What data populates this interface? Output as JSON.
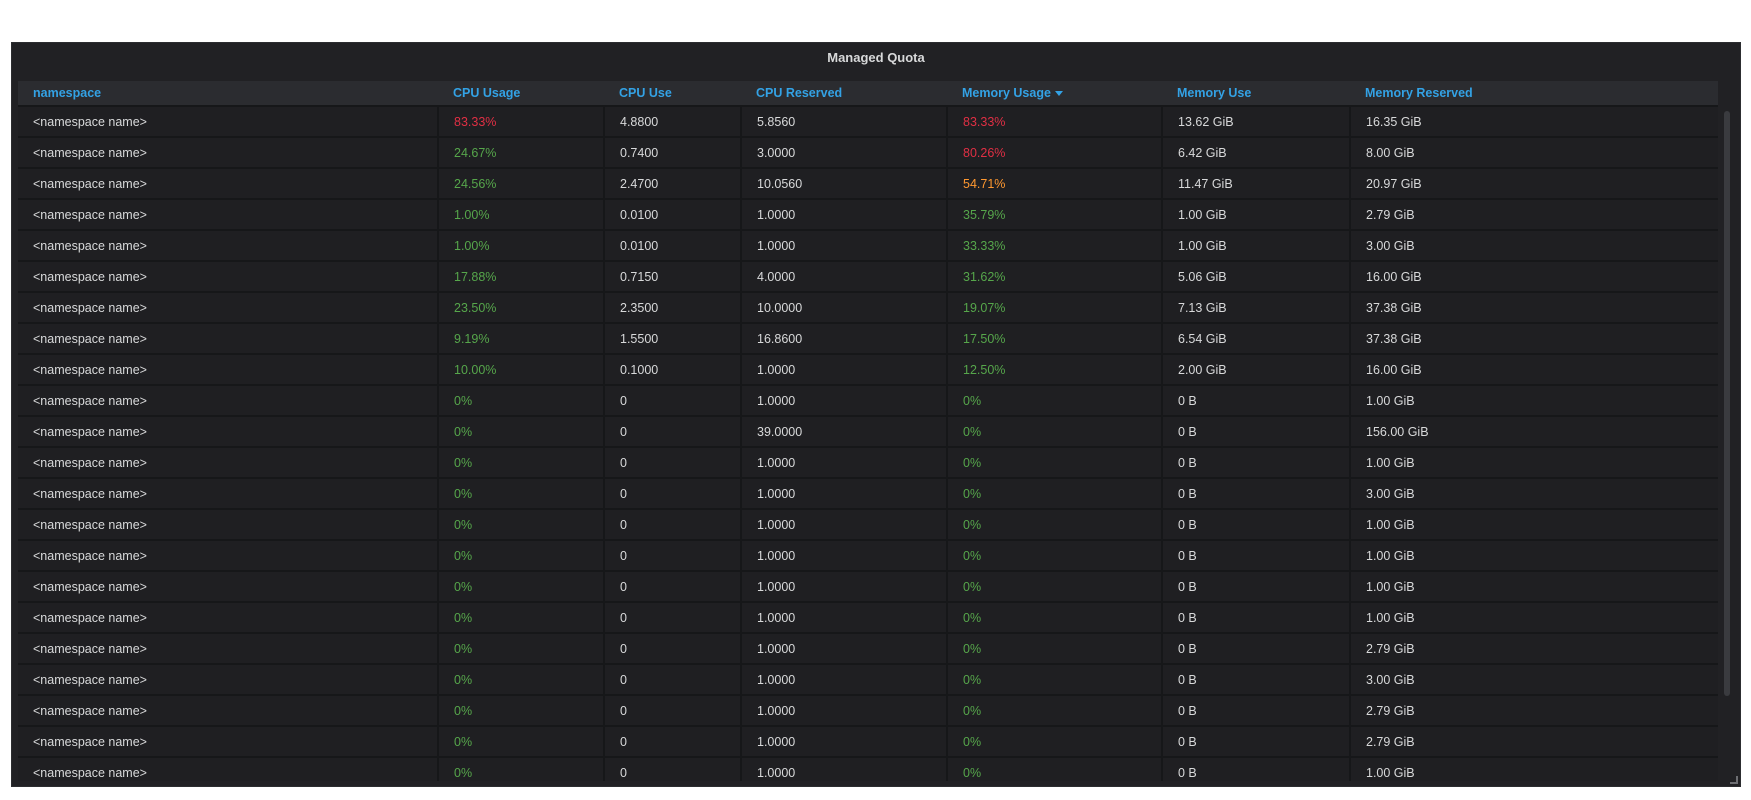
{
  "panel": {
    "title": "Managed Quota",
    "colors": {
      "red": "#e02f44",
      "orange": "#ff9830",
      "green": "#56a64b",
      "header": "#33a2e5"
    }
  },
  "columns": [
    {
      "key": "namespace",
      "label": "namespace"
    },
    {
      "key": "cpu_usage",
      "label": "CPU Usage"
    },
    {
      "key": "cpu_use",
      "label": "CPU Use"
    },
    {
      "key": "cpu_reserved",
      "label": "CPU Reserved"
    },
    {
      "key": "mem_usage",
      "label": "Memory Usage",
      "sorted": "desc"
    },
    {
      "key": "mem_use",
      "label": "Memory Use"
    },
    {
      "key": "mem_reserved",
      "label": "Memory Reserved"
    }
  ],
  "rows": [
    {
      "namespace": "<namespace name>",
      "cpu_usage": "83.33%",
      "cpu_usage_color": "red",
      "cpu_use": "4.8800",
      "cpu_reserved": "5.8560",
      "mem_usage": "83.33%",
      "mem_usage_color": "red",
      "mem_use": "13.62 GiB",
      "mem_reserved": "16.35 GiB"
    },
    {
      "namespace": "<namespace name>",
      "cpu_usage": "24.67%",
      "cpu_usage_color": "green",
      "cpu_use": "0.7400",
      "cpu_reserved": "3.0000",
      "mem_usage": "80.26%",
      "mem_usage_color": "red",
      "mem_use": "6.42 GiB",
      "mem_reserved": "8.00 GiB"
    },
    {
      "namespace": "<namespace name>",
      "cpu_usage": "24.56%",
      "cpu_usage_color": "green",
      "cpu_use": "2.4700",
      "cpu_reserved": "10.0560",
      "mem_usage": "54.71%",
      "mem_usage_color": "orange",
      "mem_use": "11.47 GiB",
      "mem_reserved": "20.97 GiB"
    },
    {
      "namespace": "<namespace name>",
      "cpu_usage": "1.00%",
      "cpu_usage_color": "green",
      "cpu_use": "0.0100",
      "cpu_reserved": "1.0000",
      "mem_usage": "35.79%",
      "mem_usage_color": "green",
      "mem_use": "1.00 GiB",
      "mem_reserved": "2.79 GiB"
    },
    {
      "namespace": "<namespace name>",
      "cpu_usage": "1.00%",
      "cpu_usage_color": "green",
      "cpu_use": "0.0100",
      "cpu_reserved": "1.0000",
      "mem_usage": "33.33%",
      "mem_usage_color": "green",
      "mem_use": "1.00 GiB",
      "mem_reserved": "3.00 GiB"
    },
    {
      "namespace": "<namespace name>",
      "cpu_usage": "17.88%",
      "cpu_usage_color": "green",
      "cpu_use": "0.7150",
      "cpu_reserved": "4.0000",
      "mem_usage": "31.62%",
      "mem_usage_color": "green",
      "mem_use": "5.06 GiB",
      "mem_reserved": "16.00 GiB"
    },
    {
      "namespace": "<namespace name>",
      "cpu_usage": "23.50%",
      "cpu_usage_color": "green",
      "cpu_use": "2.3500",
      "cpu_reserved": "10.0000",
      "mem_usage": "19.07%",
      "mem_usage_color": "green",
      "mem_use": "7.13 GiB",
      "mem_reserved": "37.38 GiB"
    },
    {
      "namespace": "<namespace name>",
      "cpu_usage": "9.19%",
      "cpu_usage_color": "green",
      "cpu_use": "1.5500",
      "cpu_reserved": "16.8600",
      "mem_usage": "17.50%",
      "mem_usage_color": "green",
      "mem_use": "6.54 GiB",
      "mem_reserved": "37.38 GiB"
    },
    {
      "namespace": "<namespace name>",
      "cpu_usage": "10.00%",
      "cpu_usage_color": "green",
      "cpu_use": "0.1000",
      "cpu_reserved": "1.0000",
      "mem_usage": "12.50%",
      "mem_usage_color": "green",
      "mem_use": "2.00 GiB",
      "mem_reserved": "16.00 GiB"
    },
    {
      "namespace": "<namespace name>",
      "cpu_usage": "0%",
      "cpu_usage_color": "green",
      "cpu_use": "0",
      "cpu_reserved": "1.0000",
      "mem_usage": "0%",
      "mem_usage_color": "green",
      "mem_use": "0 B",
      "mem_reserved": "1.00 GiB"
    },
    {
      "namespace": "<namespace name>",
      "cpu_usage": "0%",
      "cpu_usage_color": "green",
      "cpu_use": "0",
      "cpu_reserved": "39.0000",
      "mem_usage": "0%",
      "mem_usage_color": "green",
      "mem_use": "0 B",
      "mem_reserved": "156.00 GiB"
    },
    {
      "namespace": "<namespace name>",
      "cpu_usage": "0%",
      "cpu_usage_color": "green",
      "cpu_use": "0",
      "cpu_reserved": "1.0000",
      "mem_usage": "0%",
      "mem_usage_color": "green",
      "mem_use": "0 B",
      "mem_reserved": "1.00 GiB"
    },
    {
      "namespace": "<namespace name>",
      "cpu_usage": "0%",
      "cpu_usage_color": "green",
      "cpu_use": "0",
      "cpu_reserved": "1.0000",
      "mem_usage": "0%",
      "mem_usage_color": "green",
      "mem_use": "0 B",
      "mem_reserved": "3.00 GiB"
    },
    {
      "namespace": "<namespace name>",
      "cpu_usage": "0%",
      "cpu_usage_color": "green",
      "cpu_use": "0",
      "cpu_reserved": "1.0000",
      "mem_usage": "0%",
      "mem_usage_color": "green",
      "mem_use": "0 B",
      "mem_reserved": "1.00 GiB"
    },
    {
      "namespace": "<namespace name>",
      "cpu_usage": "0%",
      "cpu_usage_color": "green",
      "cpu_use": "0",
      "cpu_reserved": "1.0000",
      "mem_usage": "0%",
      "mem_usage_color": "green",
      "mem_use": "0 B",
      "mem_reserved": "1.00 GiB"
    },
    {
      "namespace": "<namespace name>",
      "cpu_usage": "0%",
      "cpu_usage_color": "green",
      "cpu_use": "0",
      "cpu_reserved": "1.0000",
      "mem_usage": "0%",
      "mem_usage_color": "green",
      "mem_use": "0 B",
      "mem_reserved": "1.00 GiB"
    },
    {
      "namespace": "<namespace name>",
      "cpu_usage": "0%",
      "cpu_usage_color": "green",
      "cpu_use": "0",
      "cpu_reserved": "1.0000",
      "mem_usage": "0%",
      "mem_usage_color": "green",
      "mem_use": "0 B",
      "mem_reserved": "1.00 GiB"
    },
    {
      "namespace": "<namespace name>",
      "cpu_usage": "0%",
      "cpu_usage_color": "green",
      "cpu_use": "0",
      "cpu_reserved": "1.0000",
      "mem_usage": "0%",
      "mem_usage_color": "green",
      "mem_use": "0 B",
      "mem_reserved": "2.79 GiB"
    },
    {
      "namespace": "<namespace name>",
      "cpu_usage": "0%",
      "cpu_usage_color": "green",
      "cpu_use": "0",
      "cpu_reserved": "1.0000",
      "mem_usage": "0%",
      "mem_usage_color": "green",
      "mem_use": "0 B",
      "mem_reserved": "3.00 GiB"
    },
    {
      "namespace": "<namespace name>",
      "cpu_usage": "0%",
      "cpu_usage_color": "green",
      "cpu_use": "0",
      "cpu_reserved": "1.0000",
      "mem_usage": "0%",
      "mem_usage_color": "green",
      "mem_use": "0 B",
      "mem_reserved": "2.79 GiB"
    },
    {
      "namespace": "<namespace name>",
      "cpu_usage": "0%",
      "cpu_usage_color": "green",
      "cpu_use": "0",
      "cpu_reserved": "1.0000",
      "mem_usage": "0%",
      "mem_usage_color": "green",
      "mem_use": "0 B",
      "mem_reserved": "2.79 GiB"
    },
    {
      "namespace": "<namespace name>",
      "cpu_usage": "0%",
      "cpu_usage_color": "green",
      "cpu_use": "0",
      "cpu_reserved": "1.0000",
      "mem_usage": "0%",
      "mem_usage_color": "green",
      "mem_use": "0 B",
      "mem_reserved": "1.00 GiB"
    }
  ]
}
